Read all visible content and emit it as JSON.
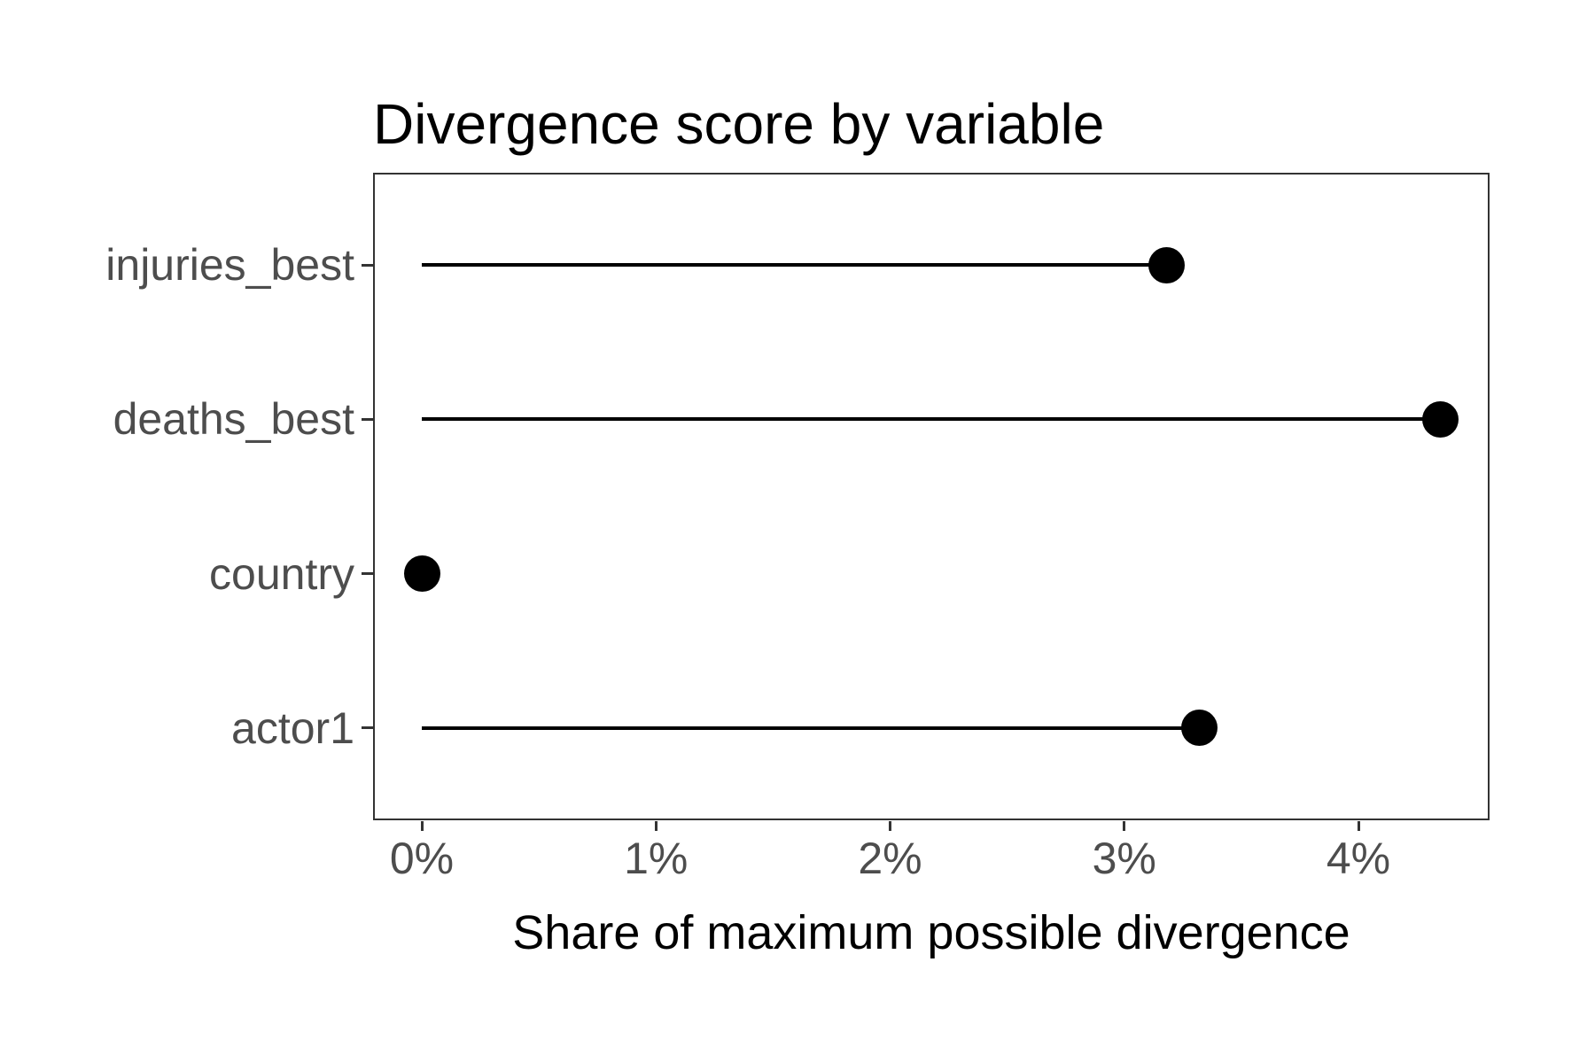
{
  "chart_data": {
    "type": "lollipop",
    "orientation": "horizontal",
    "title": "Divergence score by variable",
    "xlabel": "Share of maximum possible divergence",
    "ylabel": "",
    "categories": [
      "injuries_best",
      "deaths_best",
      "country",
      "actor1"
    ],
    "values_pct": [
      3.18,
      4.35,
      0,
      3.32
    ],
    "x_tick_labels": [
      "0%",
      "1%",
      "2%",
      "3%",
      "4%"
    ],
    "x_tick_values_pct": [
      0,
      1,
      2,
      3,
      4
    ],
    "xlim_pct": [
      -0.21,
      4.56
    ],
    "grid": false,
    "legend": "none",
    "colors": {
      "background": "#ffffff",
      "panel_border": "#333333",
      "stem": "#000000",
      "point": "#000000",
      "axis_text": "#4d4d4d",
      "title_text": "#000000",
      "axis_title_text": "#000000"
    }
  }
}
